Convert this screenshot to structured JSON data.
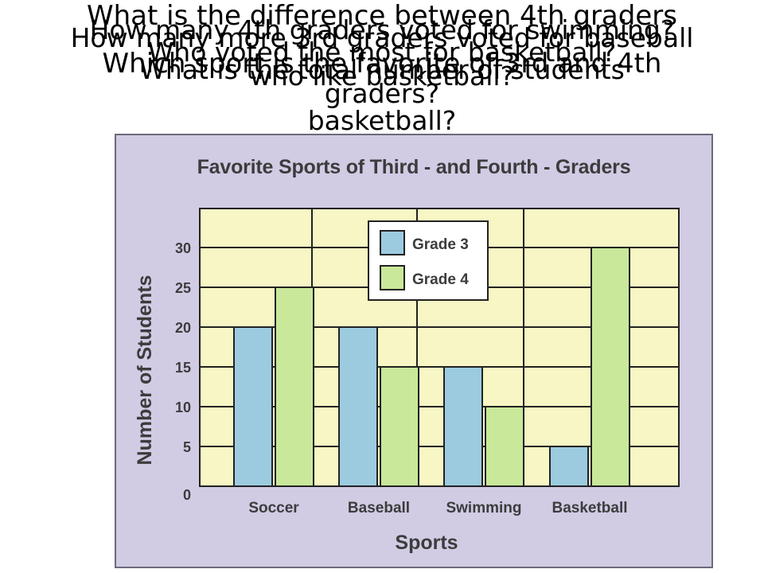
{
  "questions": [
    "What is the difference between 4th graders",
    "How many more 3rd graders voted for baseball",
    "Which sport is the favorite of 3rd and 4th",
    "How many 4th graders voted for swimming?",
    "Who voted the most for basketball?",
    "What is the total number of students",
    "who like basketball?",
    "graders?",
    "basketball?"
  ],
  "chart_data": {
    "type": "bar",
    "title": "Favorite Sports of Third - and Fourth - Graders",
    "xlabel": "Sports",
    "ylabel": "Number of Students",
    "categories": [
      "Soccer",
      "Baseball",
      "Swimming",
      "Basketball"
    ],
    "series": [
      {
        "name": "Grade 3",
        "values": [
          20,
          20,
          15,
          5
        ]
      },
      {
        "name": "Grade 4",
        "values": [
          25,
          15,
          10,
          30
        ]
      }
    ],
    "ylim": [
      0,
      35
    ],
    "yticks": [
      0,
      5,
      10,
      15,
      20,
      25,
      30
    ],
    "grid": true,
    "legend_position": "top-center",
    "colors": {
      "grade3": "#9ccbe0",
      "grade4": "#c9e89a",
      "plot_bg": "#f7f6c4",
      "frame_bg": "#d1cbe4"
    }
  }
}
